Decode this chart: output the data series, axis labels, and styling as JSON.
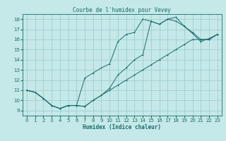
{
  "title": "Courbe de l'humidex pour Vevey",
  "xlabel": "Humidex (Indice chaleur)",
  "xlim": [
    -0.5,
    23.5
  ],
  "ylim": [
    8.5,
    18.5
  ],
  "xticks": [
    0,
    1,
    2,
    3,
    4,
    5,
    6,
    7,
    8,
    9,
    10,
    11,
    12,
    13,
    14,
    15,
    16,
    17,
    18,
    19,
    20,
    21,
    22,
    23
  ],
  "yticks": [
    9,
    10,
    11,
    12,
    13,
    14,
    15,
    16,
    17,
    18
  ],
  "bg_color": "#c5e8e8",
  "grid_color": "#9fcfcf",
  "line_color": "#1a6b6b",
  "line1_x": [
    0,
    1,
    2,
    3,
    4,
    5,
    6,
    7,
    8,
    9,
    10,
    11,
    12,
    13,
    14,
    15,
    16,
    17,
    18,
    19,
    20,
    21,
    22,
    23
  ],
  "line1_y": [
    11.0,
    10.8,
    10.2,
    9.5,
    9.2,
    9.5,
    9.5,
    9.4,
    10.0,
    10.5,
    11.0,
    11.5,
    12.0,
    12.5,
    13.0,
    13.5,
    14.0,
    14.5,
    15.0,
    15.5,
    16.0,
    16.0,
    16.0,
    16.5
  ],
  "line2_x": [
    0,
    1,
    2,
    3,
    4,
    5,
    6,
    7,
    8,
    9,
    10,
    11,
    12,
    13,
    14,
    15,
    16,
    17,
    18,
    19,
    20,
    21,
    22,
    23
  ],
  "line2_y": [
    11.0,
    10.8,
    10.2,
    9.5,
    9.2,
    9.5,
    9.5,
    12.2,
    12.7,
    13.2,
    13.6,
    15.8,
    16.5,
    16.7,
    18.0,
    17.8,
    17.5,
    18.0,
    18.2,
    17.3,
    16.7,
    16.0,
    16.0,
    16.5
  ],
  "line3_x": [
    0,
    1,
    2,
    3,
    4,
    5,
    6,
    7,
    8,
    9,
    10,
    11,
    12,
    13,
    14,
    15,
    16,
    17,
    18,
    19,
    20,
    21,
    22,
    23
  ],
  "line3_y": [
    11.0,
    10.8,
    10.2,
    9.5,
    9.2,
    9.5,
    9.5,
    9.4,
    10.0,
    10.5,
    11.2,
    12.5,
    13.2,
    14.0,
    14.5,
    17.8,
    17.5,
    18.0,
    17.8,
    17.3,
    16.6,
    15.8,
    16.1,
    16.5
  ],
  "title_fontsize": 5.5,
  "xlabel_fontsize": 5.5,
  "tick_fontsize": 5,
  "lw": 0.7,
  "ms": 2.0
}
